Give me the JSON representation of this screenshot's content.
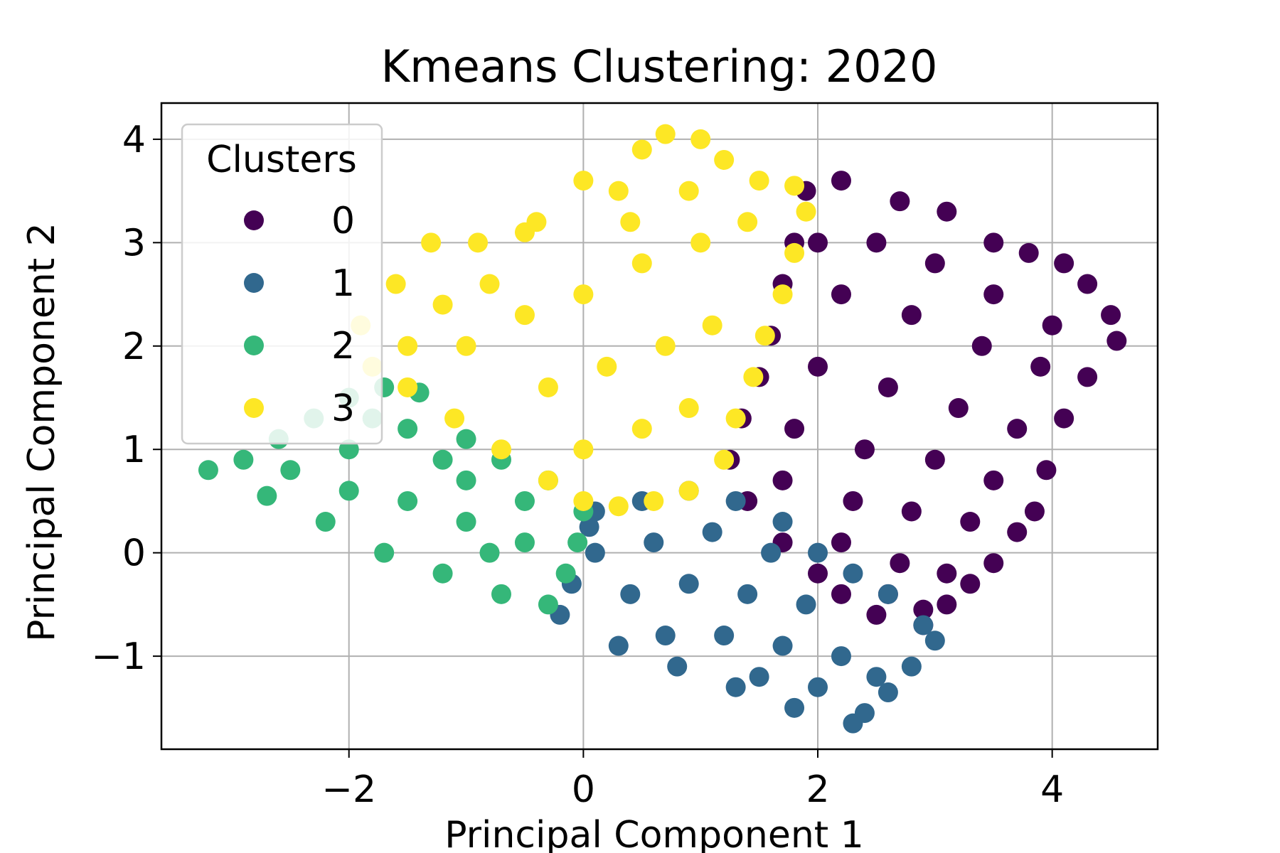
{
  "chart_data": {
    "type": "scatter",
    "title": "Kmeans Clustering: 2020",
    "xlabel": "Principal Component 1",
    "ylabel": "Principal Component 2",
    "xlim": [
      -3.6,
      4.9
    ],
    "ylim": [
      -1.9,
      4.35
    ],
    "xticks": [
      -2,
      0,
      2,
      4
    ],
    "yticks": [
      -1,
      0,
      1,
      2,
      3,
      4
    ],
    "xtick_labels": [
      "−2",
      "0",
      "2",
      "4"
    ],
    "ytick_labels": [
      "−1",
      "0",
      "1",
      "2",
      "3",
      "4"
    ],
    "grid": true,
    "legend": {
      "title": "Clusters",
      "placement": "top-left",
      "entries": [
        "0",
        "1",
        "2",
        "3"
      ]
    },
    "series": [
      {
        "name": "0",
        "color": "#440154",
        "points": [
          [
            1.9,
            3.5
          ],
          [
            2.2,
            3.6
          ],
          [
            2.7,
            3.4
          ],
          [
            3.1,
            3.3
          ],
          [
            3.5,
            3.0
          ],
          [
            3.8,
            2.9
          ],
          [
            4.1,
            2.8
          ],
          [
            4.3,
            2.6
          ],
          [
            4.5,
            2.3
          ],
          [
            4.55,
            2.05
          ],
          [
            4.3,
            1.7
          ],
          [
            4.1,
            1.3
          ],
          [
            3.95,
            0.8
          ],
          [
            3.85,
            0.4
          ],
          [
            3.7,
            0.2
          ],
          [
            3.5,
            -0.1
          ],
          [
            3.3,
            -0.3
          ],
          [
            3.1,
            -0.5
          ],
          [
            2.9,
            -0.7
          ],
          [
            2.5,
            -0.6
          ],
          [
            2.2,
            -0.4
          ],
          [
            2.0,
            -0.2
          ],
          [
            1.7,
            0.1
          ],
          [
            1.4,
            0.5
          ],
          [
            1.25,
            0.9
          ],
          [
            1.35,
            1.3
          ],
          [
            1.5,
            1.7
          ],
          [
            1.6,
            2.1
          ],
          [
            1.7,
            2.6
          ],
          [
            1.8,
            3.0
          ],
          [
            2.0,
            3.0
          ],
          [
            2.5,
            3.0
          ],
          [
            3.0,
            2.8
          ],
          [
            3.5,
            2.5
          ],
          [
            4.0,
            2.2
          ],
          [
            2.2,
            2.5
          ],
          [
            2.8,
            2.3
          ],
          [
            3.4,
            2.0
          ],
          [
            3.9,
            1.8
          ],
          [
            2.0,
            1.8
          ],
          [
            2.6,
            1.6
          ],
          [
            3.2,
            1.4
          ],
          [
            3.7,
            1.2
          ],
          [
            1.8,
            1.2
          ],
          [
            2.4,
            1.0
          ],
          [
            3.0,
            0.9
          ],
          [
            3.5,
            0.7
          ],
          [
            1.7,
            0.7
          ],
          [
            2.3,
            0.5
          ],
          [
            2.8,
            0.4
          ],
          [
            3.3,
            0.3
          ],
          [
            2.2,
            0.1
          ],
          [
            2.7,
            -0.1
          ],
          [
            3.1,
            -0.2
          ],
          [
            2.6,
            -0.4
          ],
          [
            2.9,
            -0.55
          ]
        ]
      },
      {
        "name": "1",
        "color": "#31688e",
        "points": [
          [
            0.1,
            0.4
          ],
          [
            0.5,
            0.5
          ],
          [
            0.9,
            0.6
          ],
          [
            1.3,
            0.5
          ],
          [
            1.7,
            0.3
          ],
          [
            2.0,
            0.0
          ],
          [
            2.3,
            -0.2
          ],
          [
            2.6,
            -0.4
          ],
          [
            2.9,
            -0.7
          ],
          [
            3.0,
            -0.85
          ],
          [
            2.8,
            -1.1
          ],
          [
            2.6,
            -1.35
          ],
          [
            2.4,
            -1.55
          ],
          [
            2.3,
            -1.65
          ],
          [
            1.8,
            -1.5
          ],
          [
            1.3,
            -1.3
          ],
          [
            0.8,
            -1.1
          ],
          [
            0.3,
            -0.9
          ],
          [
            -0.2,
            -0.6
          ],
          [
            -0.1,
            -0.3
          ],
          [
            0.1,
            0.0
          ],
          [
            0.05,
            0.25
          ],
          [
            0.6,
            0.1
          ],
          [
            1.1,
            0.2
          ],
          [
            1.6,
            0.0
          ],
          [
            0.4,
            -0.4
          ],
          [
            0.9,
            -0.3
          ],
          [
            1.4,
            -0.4
          ],
          [
            1.9,
            -0.5
          ],
          [
            0.7,
            -0.8
          ],
          [
            1.2,
            -0.8
          ],
          [
            1.7,
            -0.9
          ],
          [
            2.2,
            -1.0
          ],
          [
            1.5,
            -1.2
          ],
          [
            2.0,
            -1.3
          ],
          [
            2.5,
            -1.2
          ]
        ]
      },
      {
        "name": "2",
        "color": "#35b779",
        "points": [
          [
            -3.2,
            0.8
          ],
          [
            -2.9,
            0.9
          ],
          [
            -2.6,
            1.1
          ],
          [
            -2.3,
            1.3
          ],
          [
            -2.0,
            1.5
          ],
          [
            -1.7,
            1.6
          ],
          [
            -1.4,
            1.55
          ],
          [
            -1.0,
            1.1
          ],
          [
            -0.7,
            0.9
          ],
          [
            -0.3,
            0.7
          ],
          [
            0.0,
            0.4
          ],
          [
            -0.05,
            0.1
          ],
          [
            -0.15,
            -0.2
          ],
          [
            -0.3,
            -0.5
          ],
          [
            -0.7,
            -0.4
          ],
          [
            -1.2,
            -0.2
          ],
          [
            -1.7,
            0.0
          ],
          [
            -2.2,
            0.3
          ],
          [
            -2.7,
            0.55
          ],
          [
            -2.5,
            0.8
          ],
          [
            -2.0,
            1.0
          ],
          [
            -1.5,
            1.2
          ],
          [
            -1.0,
            0.7
          ],
          [
            -0.5,
            0.5
          ],
          [
            -2.0,
            0.6
          ],
          [
            -1.5,
            0.5
          ],
          [
            -1.0,
            0.3
          ],
          [
            -0.5,
            0.1
          ],
          [
            -1.2,
            0.9
          ],
          [
            -1.8,
            1.3
          ],
          [
            -0.8,
            0.0
          ]
        ]
      },
      {
        "name": "3",
        "color": "#fde725",
        "points": [
          [
            -1.9,
            2.2
          ],
          [
            -1.6,
            2.6
          ],
          [
            -1.3,
            3.0
          ],
          [
            -0.9,
            3.0
          ],
          [
            -0.5,
            3.1
          ],
          [
            -0.4,
            3.2
          ],
          [
            0.0,
            3.6
          ],
          [
            0.3,
            3.5
          ],
          [
            0.5,
            3.9
          ],
          [
            0.7,
            4.05
          ],
          [
            1.0,
            4.0
          ],
          [
            1.2,
            3.8
          ],
          [
            1.5,
            3.6
          ],
          [
            1.8,
            3.55
          ],
          [
            1.9,
            3.3
          ],
          [
            1.8,
            2.9
          ],
          [
            1.7,
            2.5
          ],
          [
            1.55,
            2.1
          ],
          [
            1.45,
            1.7
          ],
          [
            1.3,
            1.3
          ],
          [
            1.2,
            0.9
          ],
          [
            0.9,
            0.6
          ],
          [
            0.6,
            0.5
          ],
          [
            0.3,
            0.45
          ],
          [
            0.0,
            0.5
          ],
          [
            -0.3,
            0.7
          ],
          [
            -0.7,
            1.0
          ],
          [
            -1.1,
            1.3
          ],
          [
            -1.5,
            1.6
          ],
          [
            -1.8,
            1.8
          ],
          [
            -1.0,
            2.0
          ],
          [
            -0.5,
            2.3
          ],
          [
            0.0,
            2.5
          ],
          [
            0.5,
            2.8
          ],
          [
            1.0,
            3.0
          ],
          [
            1.4,
            3.2
          ],
          [
            -0.8,
            2.6
          ],
          [
            -0.3,
            1.6
          ],
          [
            0.2,
            1.8
          ],
          [
            0.7,
            2.0
          ],
          [
            1.1,
            2.2
          ],
          [
            0.0,
            1.0
          ],
          [
            0.5,
            1.2
          ],
          [
            0.9,
            1.4
          ],
          [
            0.4,
            3.2
          ],
          [
            0.9,
            3.5
          ],
          [
            -1.2,
            2.4
          ],
          [
            -1.5,
            2.0
          ]
        ]
      }
    ]
  }
}
